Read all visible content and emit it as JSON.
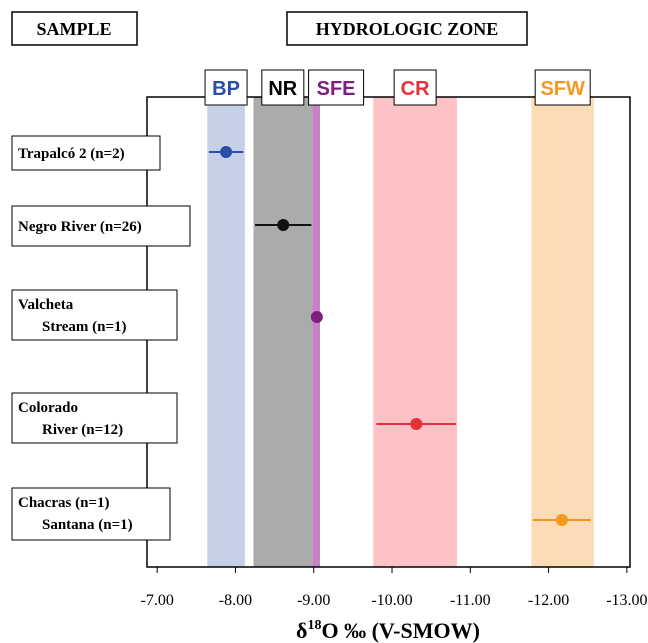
{
  "chart_data": {
    "type": "errorbar",
    "header_sample": "SAMPLE",
    "header_zone": "HYDROLOGIC ZONE",
    "x_label": {
      "prefix": "δ",
      "sup": "18",
      "suffix": "O ‰ (V-SMOW)"
    },
    "categories": [
      [
        "Trapalcó 2 (n=2)"
      ],
      [
        "Negro River (n=26)"
      ],
      [
        "Valcheta",
        "Stream (n=1)"
      ],
      [
        "Colorado",
        "River (n=12)"
      ],
      [
        "Chacras (n=1)",
        "Santana (n=1)"
      ]
    ],
    "values": [
      -7.88,
      -8.61,
      -9.04,
      -10.31,
      -12.17
    ],
    "errors": [
      0.22,
      0.36,
      null,
      0.51,
      0.37
    ],
    "colors": [
      "#2a4fa8",
      "#111111",
      "#7d1f80",
      "#e8303a",
      "#f39a1e"
    ],
    "zones": [
      {
        "name": "BP",
        "color": "#2a4fa8",
        "fill": "#c6d0e6",
        "range": [
          -7.64,
          -8.12
        ]
      },
      {
        "name": "NR",
        "color": "#000000",
        "fill": "#ababab",
        "range": [
          -8.23,
          -8.98
        ]
      },
      {
        "name": "SFE",
        "color": "#7d1f80",
        "fill": "#c583c6",
        "range": [
          -8.98,
          -9.08
        ]
      },
      {
        "name": "CR",
        "color": "#e8303a",
        "fill": "#fcc2c5",
        "range": [
          -9.76,
          -10.83
        ]
      },
      {
        "name": "SFW",
        "color": "#f39a1e",
        "fill": "#fbdcb6",
        "range": [
          -11.78,
          -12.58
        ]
      }
    ],
    "xlim": [
      -6.87,
      -13.04
    ],
    "xticks": [
      {
        "value": -7,
        "label": "-7.00"
      },
      {
        "value": -8,
        "label": "-8.00"
      },
      {
        "value": -9,
        "label": "-9.00"
      },
      {
        "value": -10,
        "label": "-10.00"
      },
      {
        "value": -11,
        "label": "-11.00"
      },
      {
        "value": -12,
        "label": "-12.00"
      },
      {
        "value": -13,
        "label": "-13.00"
      }
    ]
  }
}
